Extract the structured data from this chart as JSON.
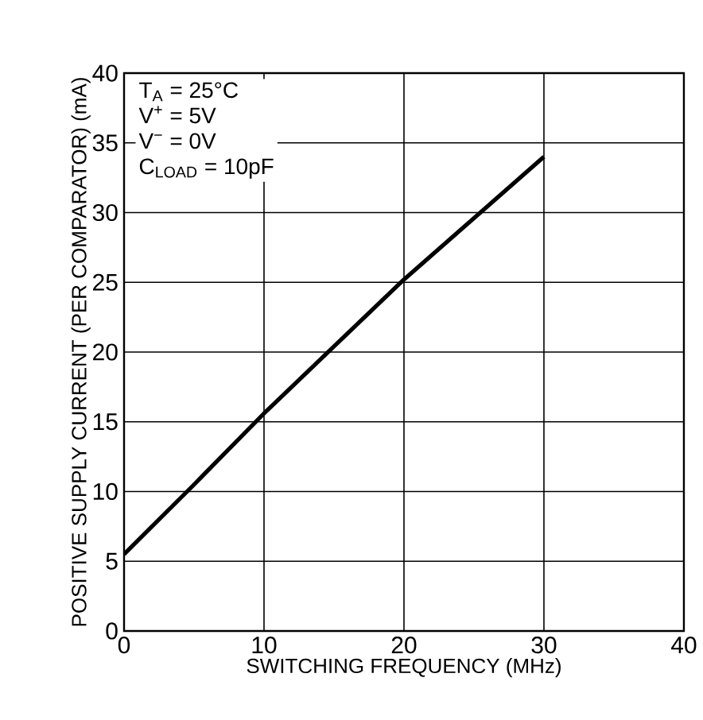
{
  "chart_data": {
    "type": "line",
    "xlabel": "SWITCHING FREQUENCY (MHz)",
    "ylabel": "POSITIVE SUPPLY CURRENT (PER COMPARATOR) (mA)",
    "x": [
      0,
      5,
      10,
      15,
      20,
      25,
      30
    ],
    "series": [
      {
        "color": "#000000",
        "values": [
          5.5,
          10.5,
          15.6,
          20.4,
          25.2,
          29.6,
          34
        ]
      }
    ],
    "xlim": [
      0,
      40
    ],
    "ylim": [
      0,
      40
    ],
    "xticks": [
      0,
      10,
      20,
      30,
      40
    ],
    "yticks": [
      0,
      5,
      10,
      15,
      20,
      25,
      30,
      35,
      40
    ],
    "grid": true,
    "legend": false,
    "marker": "none",
    "line_style": "solid",
    "annotations": [
      "T$_{A}$ = 25°C",
      "V$^{+}$ = 5V",
      "V$^{−}$ = 0V",
      "C$_{LOAD}$ = 10pF"
    ]
  }
}
